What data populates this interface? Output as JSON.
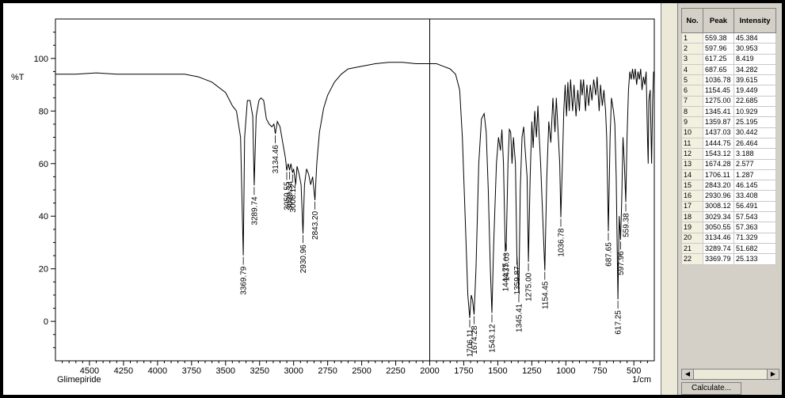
{
  "sample_name": "Glimepiride",
  "x_unit": "1/cm",
  "y_unit": "%T",
  "x_ticks": [
    "4500",
    "4250",
    "4000",
    "3750",
    "3500",
    "3250",
    "3000",
    "2750",
    "2500",
    "2250",
    "2000",
    "1750",
    "1500",
    "1250",
    "1000",
    "750",
    "500"
  ],
  "y_ticks": [
    "100",
    "80",
    "60",
    "40",
    "20",
    "0"
  ],
  "cursor_x": 2000,
  "table": {
    "headers": [
      "No.",
      "Peak",
      "Intensity"
    ],
    "rows": [
      [
        "1",
        "559.38",
        "45.384"
      ],
      [
        "2",
        "597.96",
        "30.953"
      ],
      [
        "3",
        "617.25",
        "8.419"
      ],
      [
        "4",
        "687.65",
        "34.282"
      ],
      [
        "5",
        "1036.78",
        "39.615"
      ],
      [
        "6",
        "1154.45",
        "19.449"
      ],
      [
        "7",
        "1275.00",
        "22.685"
      ],
      [
        "8",
        "1345.41",
        "10.929"
      ],
      [
        "9",
        "1359.87",
        "25.195"
      ],
      [
        "10",
        "1437.03",
        "30.442"
      ],
      [
        "11",
        "1444.75",
        "26.464"
      ],
      [
        "12",
        "1543.12",
        "3.188"
      ],
      [
        "13",
        "1674.28",
        "2.577"
      ],
      [
        "14",
        "1706.11",
        "1.287"
      ],
      [
        "15",
        "2843.20",
        "46.145"
      ],
      [
        "16",
        "2930.96",
        "33.408"
      ],
      [
        "17",
        "3008.12",
        "56.491"
      ],
      [
        "18",
        "3029.34",
        "57.543"
      ],
      [
        "19",
        "3050.55",
        "57.363"
      ],
      [
        "20",
        "3134.46",
        "71.329"
      ],
      [
        "21",
        "3289.74",
        "51.682"
      ],
      [
        "22",
        "3369.79",
        "25.133"
      ]
    ]
  },
  "calc_button": "Calculate...",
  "chart_data": {
    "type": "line",
    "xlabel": "1/cm",
    "ylabel": "%T",
    "title": "",
    "xlim": [
      4750,
      350
    ],
    "ylim": [
      -15,
      115
    ],
    "grid": false,
    "series": [
      {
        "points": [
          [
            4750,
            94
          ],
          [
            4600,
            94
          ],
          [
            4450,
            94.5
          ],
          [
            4300,
            94
          ],
          [
            4100,
            94
          ],
          [
            3950,
            94
          ],
          [
            3800,
            94
          ],
          [
            3700,
            93
          ],
          [
            3600,
            91
          ],
          [
            3500,
            87
          ],
          [
            3450,
            82
          ],
          [
            3420,
            80
          ],
          [
            3390,
            70
          ],
          [
            3369.79,
            25.1
          ],
          [
            3360,
            70
          ],
          [
            3340,
            84
          ],
          [
            3320,
            84
          ],
          [
            3300,
            78
          ],
          [
            3289.74,
            51.7
          ],
          [
            3275,
            78
          ],
          [
            3255,
            84
          ],
          [
            3240,
            85
          ],
          [
            3220,
            84
          ],
          [
            3200,
            77
          ],
          [
            3180,
            75
          ],
          [
            3160,
            74
          ],
          [
            3145,
            75
          ],
          [
            3134.46,
            71.3
          ],
          [
            3120,
            76
          ],
          [
            3100,
            74
          ],
          [
            3080,
            68
          ],
          [
            3060,
            62
          ],
          [
            3050.55,
            57.4
          ],
          [
            3040,
            60
          ],
          [
            3029.34,
            57.5
          ],
          [
            3020,
            60
          ],
          [
            3008.12,
            56.5
          ],
          [
            3000,
            58
          ],
          [
            2985,
            52
          ],
          [
            2975,
            59
          ],
          [
            2960,
            56
          ],
          [
            2945,
            52
          ],
          [
            2930.96,
            33.4
          ],
          [
            2920,
            52
          ],
          [
            2905,
            58
          ],
          [
            2890,
            56
          ],
          [
            2875,
            52
          ],
          [
            2860,
            55
          ],
          [
            2843.2,
            46.1
          ],
          [
            2830,
            60
          ],
          [
            2810,
            72
          ],
          [
            2780,
            81
          ],
          [
            2750,
            86
          ],
          [
            2700,
            91
          ],
          [
            2650,
            94
          ],
          [
            2600,
            96
          ],
          [
            2500,
            97
          ],
          [
            2400,
            98
          ],
          [
            2300,
            98.5
          ],
          [
            2200,
            98.5
          ],
          [
            2100,
            98
          ],
          [
            2000,
            98
          ],
          [
            1950,
            98
          ],
          [
            1900,
            97
          ],
          [
            1850,
            96
          ],
          [
            1810,
            94
          ],
          [
            1780,
            88
          ],
          [
            1760,
            70
          ],
          [
            1740,
            40
          ],
          [
            1720,
            10
          ],
          [
            1706.11,
            1.3
          ],
          [
            1695,
            10
          ],
          [
            1685,
            8
          ],
          [
            1674.28,
            2.6
          ],
          [
            1660,
            20
          ],
          [
            1640,
            60
          ],
          [
            1620,
            77
          ],
          [
            1600,
            79
          ],
          [
            1585,
            72
          ],
          [
            1570,
            50
          ],
          [
            1555,
            20
          ],
          [
            1543.12,
            3.2
          ],
          [
            1530,
            30
          ],
          [
            1510,
            60
          ],
          [
            1495,
            70
          ],
          [
            1480,
            65
          ],
          [
            1470,
            73
          ],
          [
            1458,
            60
          ],
          [
            1444.75,
            26.5
          ],
          [
            1437.03,
            30.4
          ],
          [
            1425,
            60
          ],
          [
            1415,
            73
          ],
          [
            1405,
            72
          ],
          [
            1395,
            60
          ],
          [
            1385,
            70
          ],
          [
            1370,
            60
          ],
          [
            1359.87,
            25.2
          ],
          [
            1345.41,
            10.9
          ],
          [
            1335,
            50
          ],
          [
            1322,
            70
          ],
          [
            1310,
            74
          ],
          [
            1300,
            66
          ],
          [
            1285,
            55
          ],
          [
            1275,
            22.7
          ],
          [
            1262,
            55
          ],
          [
            1250,
            76
          ],
          [
            1240,
            66
          ],
          [
            1228,
            80
          ],
          [
            1216,
            70
          ],
          [
            1205,
            82
          ],
          [
            1195,
            70
          ],
          [
            1185,
            60
          ],
          [
            1170,
            40
          ],
          [
            1154.45,
            19.4
          ],
          [
            1140,
            55
          ],
          [
            1125,
            76
          ],
          [
            1110,
            68
          ],
          [
            1095,
            85
          ],
          [
            1080,
            72
          ],
          [
            1070,
            85
          ],
          [
            1055,
            70
          ],
          [
            1045,
            60
          ],
          [
            1036.78,
            39.6
          ],
          [
            1025,
            60
          ],
          [
            1015,
            80
          ],
          [
            1005,
            90
          ],
          [
            995,
            78
          ],
          [
            985,
            91
          ],
          [
            975,
            80
          ],
          [
            965,
            92
          ],
          [
            950,
            80
          ],
          [
            940,
            90
          ],
          [
            925,
            78
          ],
          [
            912,
            88
          ],
          [
            900,
            80
          ],
          [
            890,
            92
          ],
          [
            880,
            86
          ],
          [
            870,
            92
          ],
          [
            855,
            80
          ],
          [
            845,
            90
          ],
          [
            832,
            82
          ],
          [
            820,
            90
          ],
          [
            808,
            84
          ],
          [
            795,
            92
          ],
          [
            780,
            86
          ],
          [
            770,
            93
          ],
          [
            755,
            80
          ],
          [
            745,
            90
          ],
          [
            732,
            82
          ],
          [
            720,
            88
          ],
          [
            708,
            80
          ],
          [
            700,
            70
          ],
          [
            687.65,
            34.3
          ],
          [
            675,
            70
          ],
          [
            665,
            85
          ],
          [
            650,
            80
          ],
          [
            640,
            75
          ],
          [
            630,
            55
          ],
          [
            617.25,
            8.4
          ],
          [
            608,
            40
          ],
          [
            597.96,
            31.0
          ],
          [
            590,
            45
          ],
          [
            580,
            70
          ],
          [
            570,
            60
          ],
          [
            559.38,
            45.4
          ],
          [
            550,
            70
          ],
          [
            540,
            88
          ],
          [
            530,
            95
          ],
          [
            520,
            92
          ],
          [
            510,
            96
          ],
          [
            500,
            92
          ],
          [
            490,
            96
          ],
          [
            480,
            90
          ],
          [
            470,
            95
          ],
          [
            460,
            92
          ],
          [
            450,
            96
          ],
          [
            440,
            88
          ],
          [
            430,
            93
          ],
          [
            420,
            90
          ],
          [
            410,
            95
          ],
          [
            400,
            70
          ],
          [
            395,
            60
          ],
          [
            390,
            84
          ],
          [
            380,
            88
          ],
          [
            370,
            60
          ],
          [
            362,
            84
          ],
          [
            355,
            95
          ]
        ]
      }
    ],
    "peak_labels": [
      {
        "x": 3369.79,
        "y": 25.133,
        "label": "3369.79"
      },
      {
        "x": 3289.74,
        "y": 51.682,
        "label": "3289.74"
      },
      {
        "x": 3134.46,
        "y": 71.329,
        "label": "3134.46"
      },
      {
        "x": 3050.55,
        "y": 57.363,
        "label": "3050.55"
      },
      {
        "x": 3029.34,
        "y": 57.543,
        "label": "3029.34"
      },
      {
        "x": 3008.12,
        "y": 56.491,
        "label": "3008.12"
      },
      {
        "x": 2930.96,
        "y": 33.408,
        "label": "2930.96"
      },
      {
        "x": 2843.2,
        "y": 46.145,
        "label": "2843.20"
      },
      {
        "x": 1706.11,
        "y": 1.287,
        "label": "1706.11"
      },
      {
        "x": 1674.28,
        "y": 2.577,
        "label": "1674.28"
      },
      {
        "x": 1543.12,
        "y": 3.188,
        "label": "1543.12"
      },
      {
        "x": 1444.75,
        "y": 26.464,
        "label": "1444.75"
      },
      {
        "x": 1437.03,
        "y": 30.442,
        "label": "1437.03"
      },
      {
        "x": 1359.87,
        "y": 25.195,
        "label": "1359.87"
      },
      {
        "x": 1345.41,
        "y": 10.929,
        "label": "1345.41"
      },
      {
        "x": 1275.0,
        "y": 22.685,
        "label": "1275.00"
      },
      {
        "x": 1154.45,
        "y": 19.449,
        "label": "1154.45"
      },
      {
        "x": 1036.78,
        "y": 39.615,
        "label": "1036.78"
      },
      {
        "x": 687.65,
        "y": 34.282,
        "label": "687.65"
      },
      {
        "x": 617.25,
        "y": 8.419,
        "label": "617.25"
      },
      {
        "x": 597.96,
        "y": 30.953,
        "label": "597.96"
      },
      {
        "x": 559.38,
        "y": 45.384,
        "label": "559.38"
      }
    ]
  }
}
